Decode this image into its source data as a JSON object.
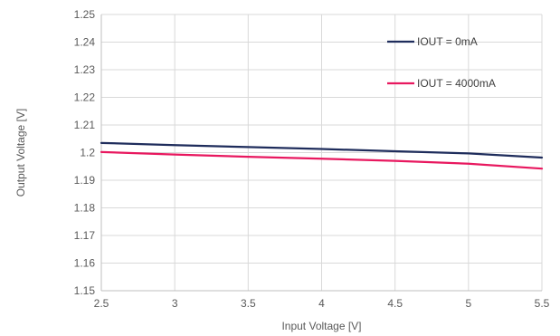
{
  "chart_data": {
    "type": "line",
    "xlabel": "Input Voltage [V]",
    "ylabel": "Output Voltage [V]",
    "xlim": [
      2.5,
      5.5
    ],
    "ylim": [
      1.15,
      1.25
    ],
    "xticks": [
      "2.5",
      "3",
      "3.5",
      "4",
      "4.5",
      "5",
      "5.5"
    ],
    "yticks": [
      "1.15",
      "1.16",
      "1.17",
      "1.18",
      "1.19",
      "1.2",
      "1.21",
      "1.22",
      "1.23",
      "1.24",
      "1.25"
    ],
    "grid": true,
    "legend_position": "top-right",
    "series": [
      {
        "name": "IOUT = 0mA",
        "color": "#1f2d5c",
        "x": [
          2.5,
          3.0,
          3.5,
          4.0,
          4.5,
          5.0,
          5.5
        ],
        "y": [
          1.2035,
          1.2027,
          1.202,
          1.2013,
          1.2005,
          1.1997,
          1.1982
        ]
      },
      {
        "name": "IOUT = 4000mA",
        "color": "#e8185f",
        "x": [
          2.5,
          3.0,
          3.5,
          4.0,
          4.5,
          5.0,
          5.5
        ],
        "y": [
          1.2002,
          1.1993,
          1.1985,
          1.1978,
          1.197,
          1.196,
          1.1942
        ]
      }
    ]
  }
}
